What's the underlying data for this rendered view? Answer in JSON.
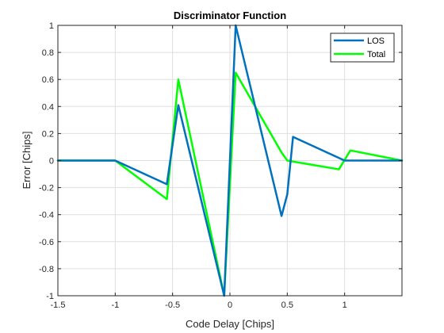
{
  "chart_data": {
    "type": "line",
    "title": "Discriminator Function",
    "xlabel": "Code Delay [Chips]",
    "ylabel": "Error [Chips]",
    "xlim": [
      -1.5,
      1.5
    ],
    "ylim": [
      -1,
      1
    ],
    "x_ticks": [
      -1.5,
      -1,
      -0.5,
      0,
      0.5,
      1
    ],
    "x_tick_labels": [
      "-1.5",
      "-1",
      "-0.5",
      "0",
      "0.5",
      "1"
    ],
    "y_ticks": [
      -1,
      -0.8,
      -0.6,
      -0.4,
      -0.2,
      0,
      0.2,
      0.4,
      0.6,
      0.8,
      1
    ],
    "y_tick_labels": [
      "-1",
      "-0.8",
      "-0.6",
      "-0.4",
      "-0.2",
      "0",
      "0.2",
      "0.4",
      "0.6",
      "0.8",
      "1"
    ],
    "grid": true,
    "legend_position": "top-right",
    "series": [
      {
        "name": "LOS",
        "color": "#0072BD",
        "x": [
          -1.5,
          -1.0,
          -0.55,
          -0.45,
          -0.05,
          0.05,
          0.45,
          0.5,
          0.55,
          1.0,
          1.5
        ],
        "y": [
          0,
          0,
          -0.175,
          0.41,
          -1.0,
          1.0,
          -0.41,
          -0.25,
          0.175,
          0,
          0
        ]
      },
      {
        "name": "Total",
        "color": "#00FF00",
        "x": [
          -1.5,
          -1.0,
          -0.55,
          -0.45,
          -0.05,
          0.05,
          0.45,
          0.5,
          0.95,
          1.05,
          1.5
        ],
        "y": [
          0,
          0,
          -0.285,
          0.6,
          -1.0,
          0.65,
          0.06,
          0.0,
          -0.065,
          0.075,
          0
        ]
      }
    ]
  }
}
